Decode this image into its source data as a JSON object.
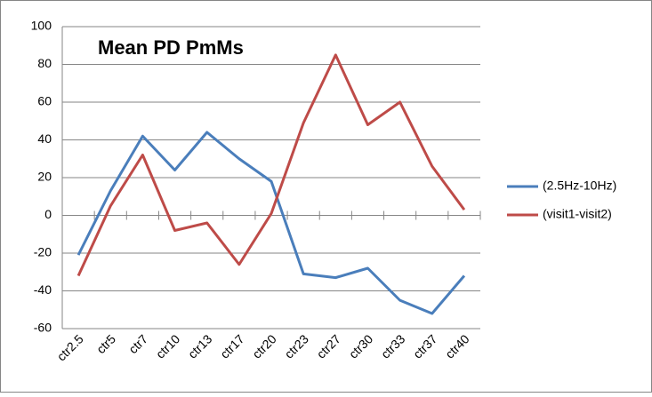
{
  "chart_data": {
    "type": "line",
    "title": "Mean PD PmMs",
    "categories": [
      "ctr2.5",
      "ctr5",
      "ctr7",
      "ctr10",
      "ctr13",
      "ctr17",
      "ctr20",
      "ctr23",
      "ctr27",
      "ctr30",
      "ctr33",
      "ctr37",
      "ctr40"
    ],
    "series": [
      {
        "name": "(2.5Hz-10Hz)",
        "color": "#4a7ebb",
        "values": [
          -21,
          13,
          42,
          24,
          44,
          30,
          18,
          -31,
          -33,
          -28,
          -45,
          -52,
          -32
        ]
      },
      {
        "name": "(visit1-visit2)",
        "color": "#be4b48",
        "values": [
          -32,
          5,
          32,
          -8,
          -4,
          -26,
          1,
          49,
          85,
          48,
          60,
          26,
          3
        ]
      }
    ],
    "ylim": [
      -60,
      100
    ],
    "yticks": [
      -60,
      -40,
      -20,
      0,
      20,
      40,
      60,
      80,
      100
    ],
    "grid": true,
    "legend": "right"
  }
}
